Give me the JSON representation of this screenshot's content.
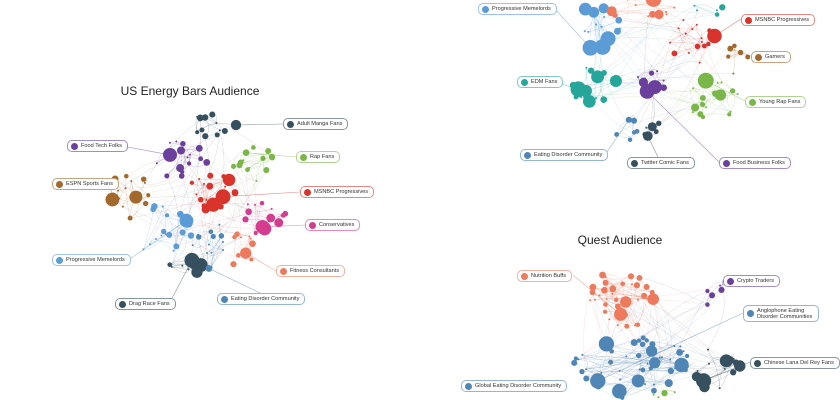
{
  "graphs": [
    {
      "title": "US Energy Bars Audience",
      "labels": [
        {
          "text": "Adult Manga Fans",
          "color": "#37505f"
        },
        {
          "text": "Food Tech Folks",
          "color": "#6b3f9c"
        },
        {
          "text": "Rap Fans",
          "color": "#7ab648"
        },
        {
          "text": "ESPN Sports Fans",
          "color": "#a3692c"
        },
        {
          "text": "MSNBC Progressives",
          "color": "#d9342b"
        },
        {
          "text": "Conservatives",
          "color": "#d43d8f"
        },
        {
          "text": "Progressive Memelords",
          "color": "#5b9bd6"
        },
        {
          "text": "Fitness Consultants",
          "color": "#ee7a5e"
        },
        {
          "text": "Drag Race Fans",
          "color": "#37505f"
        },
        {
          "text": "Eating Disorder Community",
          "color": "#4f86b5"
        }
      ]
    },
    {
      "title": "",
      "labels": [
        {
          "text": "Progressive Memelords",
          "color": "#5b9bd6"
        },
        {
          "text": "MSNBC Progressives",
          "color": "#d9342b"
        },
        {
          "text": "Gamers",
          "color": "#a3692c"
        },
        {
          "text": "EDM Fans",
          "color": "#26a69a"
        },
        {
          "text": "Young Rap Fans",
          "color": "#7ab648"
        },
        {
          "text": "Eating Disorder Community",
          "color": "#4f86b5"
        },
        {
          "text": "Twitter Comic Fans",
          "color": "#37505f"
        },
        {
          "text": "Food Business Folks",
          "color": "#6b3f9c"
        }
      ]
    },
    {
      "title": "Quest Audience",
      "labels": [
        {
          "text": "Nutrition Buffs",
          "color": "#ee7a5e"
        },
        {
          "text": "Crypto Traders",
          "color": "#6b3f9c"
        },
        {
          "text": "Anglophone Eating Disorder Communities",
          "color": "#4f86b5"
        },
        {
          "text": "Chinese Lana Del Rey Fans",
          "color": "#37505f"
        },
        {
          "text": "Global Eating Disorder Community",
          "color": "#4f86b5"
        }
      ]
    }
  ]
}
